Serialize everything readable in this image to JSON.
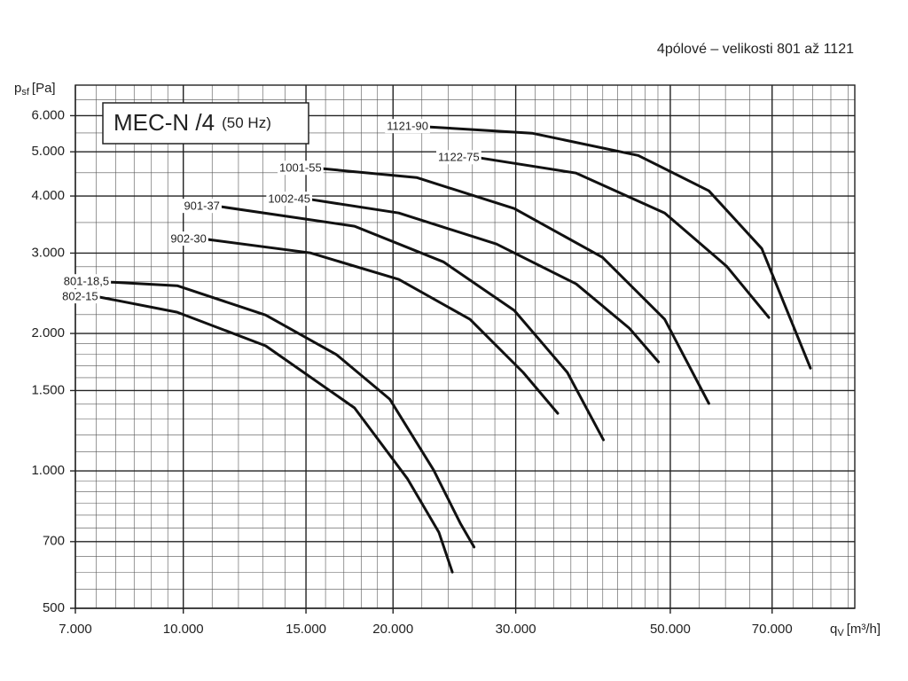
{
  "chart_data": {
    "type": "line",
    "title": "MEC-N /4",
    "subtitle": "(50 Hz)",
    "note": "4pólové – velikosti 801 až 1121",
    "y_label": "p",
    "y_label_sub": "sf",
    "y_label_unit": "[Pa]",
    "x_label": "q",
    "x_label_sub": "V",
    "x_label_unit": "[m³/h]",
    "log_x": true,
    "log_y": true,
    "grid": true,
    "xlim": [
      7000,
      92000
    ],
    "ylim": [
      500,
      7000
    ],
    "xticks": [
      {
        "value": 7000,
        "label": "7.000"
      },
      {
        "value": 10000,
        "label": "10.000"
      },
      {
        "value": 15000,
        "label": "15.000"
      },
      {
        "value": 20000,
        "label": "20.000"
      },
      {
        "value": 30000,
        "label": "30.000"
      },
      {
        "value": 50000,
        "label": "50.000"
      },
      {
        "value": 70000,
        "label": "70.000"
      }
    ],
    "yticks": [
      500,
      700,
      {
        "value": 1000,
        "label": "1.000"
      },
      {
        "value": 1500,
        "label": "1.500"
      },
      {
        "value": 2000,
        "label": "2.000"
      },
      {
        "value": 3000,
        "label": "3.000"
      },
      {
        "value": 4000,
        "label": "4.000"
      },
      {
        "value": 5000,
        "label": "5.000"
      },
      {
        "value": 6000,
        "label": "6.000"
      }
    ],
    "x_minor_grid": [
      7500,
      8000,
      8500,
      9000,
      9500,
      11000,
      12000,
      13000,
      14000,
      16000,
      17000,
      18000,
      19000,
      22000,
      24000,
      26000,
      28000,
      32000,
      34000,
      36000,
      38000,
      40000,
      42000,
      44000,
      46000,
      48000,
      55000,
      60000,
      65000,
      75000,
      80000,
      85000,
      90000
    ],
    "y_minor_grid": [
      550,
      600,
      650,
      750,
      800,
      850,
      900,
      950,
      1100,
      1200,
      1300,
      1400,
      1600,
      1700,
      1800,
      1900,
      2200,
      2400,
      2600,
      2800,
      3500,
      4500,
      5500,
      6500
    ],
    "series": [
      {
        "name": "801-18,5",
        "color": "#111111",
        "x": [
          7873,
          9803,
          13130,
          16600,
          19780,
          22870,
          24980,
          26140
        ],
        "values": [
          2591,
          2545,
          2195,
          1796,
          1436,
          1004,
          768,
          681
        ]
      },
      {
        "name": "802-15",
        "color": "#111111",
        "x": [
          7590,
          9803,
          13130,
          17610,
          20990,
          23270,
          24330
        ],
        "values": [
          2402,
          2226,
          1879,
          1374,
          960,
          734,
          600
        ]
      },
      {
        "name": "902-30",
        "color": "#111111",
        "x": [
          10860,
          15220,
          20380,
          25790,
          30750,
          34470
        ],
        "values": [
          3213,
          3003,
          2627,
          2148,
          1643,
          1337
        ]
      },
      {
        "name": "901-37",
        "color": "#111111",
        "x": [
          11350,
          17610,
          23620,
          29860,
          35580,
          40080
        ],
        "values": [
          3790,
          3436,
          2871,
          2246,
          1643,
          1169
        ]
      },
      {
        "name": "1002-45",
        "color": "#111111",
        "x": [
          15310,
          20380,
          28150,
          36640,
          43660,
          48090
        ],
        "values": [
          3928,
          3673,
          3140,
          2568,
          2054,
          1733
        ]
      },
      {
        "name": "1001-55",
        "color": "#111111",
        "x": [
          15890,
          21620,
          29860,
          39960,
          49080,
          56800
        ],
        "values": [
          4592,
          4392,
          3756,
          2936,
          2148,
          1405
        ]
      },
      {
        "name": "1121-90",
        "color": "#111111",
        "x": [
          22600,
          31650,
          44960,
          56800,
          67660,
          79470
        ],
        "values": [
          5668,
          5494,
          4909,
          4108,
          3070,
          1679
        ]
      },
      {
        "name": "1122-75",
        "color": "#111111",
        "x": [
          26770,
          36640,
          49080,
          60220,
          69250
        ],
        "values": [
          4844,
          4491,
          3673,
          2808,
          2167
        ]
      }
    ]
  }
}
